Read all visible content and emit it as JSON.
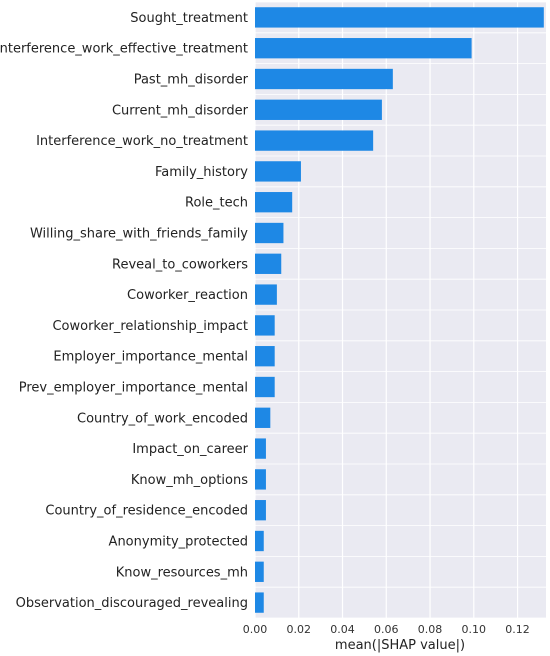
{
  "chart_data": {
    "type": "bar",
    "orientation": "horizontal",
    "xlabel": "mean(|SHAP value|)",
    "ylabel": "",
    "title": "",
    "xlim": [
      0,
      0.133
    ],
    "xticks": [
      0.0,
      0.02,
      0.04,
      0.06,
      0.08,
      0.1,
      0.12
    ],
    "xtick_labels": [
      "0.00",
      "0.02",
      "0.04",
      "0.06",
      "0.08",
      "0.10",
      "0.12"
    ],
    "grid": true,
    "bar_color": "#1e88e5",
    "background": "#eaeaf2",
    "categories": [
      "Sought_treatment",
      "Interference_work_effective_treatment",
      "Past_mh_disorder",
      "Current_mh_disorder",
      "Interference_work_no_treatment",
      "Family_history",
      "Role_tech",
      "Willing_share_with_friends_family",
      "Reveal_to_coworkers",
      "Coworker_reaction",
      "Coworker_relationship_impact",
      "Employer_importance_mental",
      "Prev_employer_importance_mental",
      "Country_of_work_encoded",
      "Impact_on_career",
      "Know_mh_options",
      "Country_of_residence_encoded",
      "Anonymity_protected",
      "Know_resources_mh",
      "Observation_discouraged_revealing"
    ],
    "values": [
      0.132,
      0.099,
      0.063,
      0.058,
      0.054,
      0.021,
      0.017,
      0.013,
      0.012,
      0.01,
      0.009,
      0.009,
      0.009,
      0.007,
      0.005,
      0.005,
      0.005,
      0.004,
      0.004,
      0.004
    ]
  }
}
